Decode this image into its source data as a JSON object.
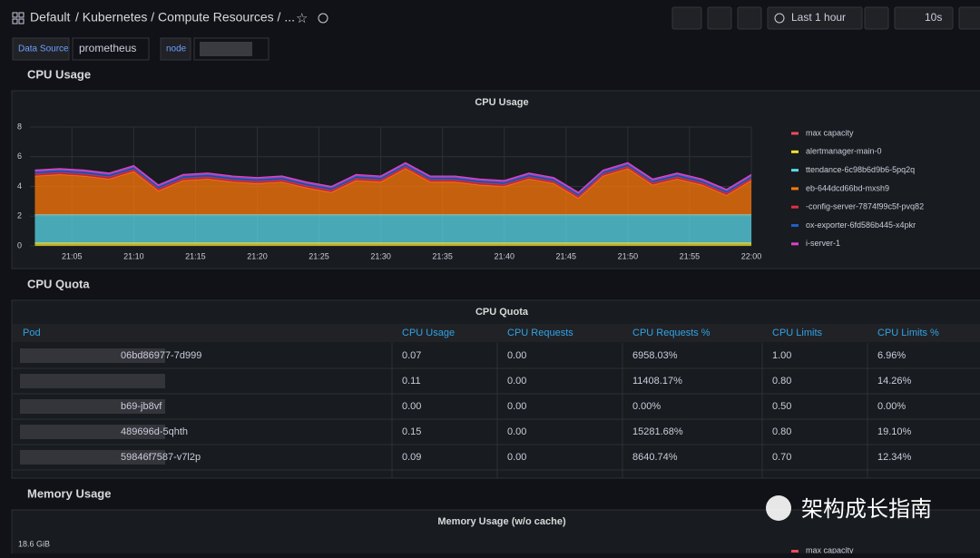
{
  "header": {
    "home": "Default",
    "breadcrumb": "/ Kubernetes / Compute Resources / ...",
    "time_range": "Last 1 hour",
    "refresh": "10s"
  },
  "variables": {
    "datasource_label": "Data Source",
    "datasource_value": "prometheus",
    "node_label": "node"
  },
  "rows": {
    "cpu_usage": "CPU Usage",
    "cpu_quota": "CPU Quota",
    "memory_usage": "Memory Usage"
  },
  "chart_data": {
    "type": "stacked-area",
    "title": "CPU Usage",
    "x": [
      2,
      4,
      6,
      8,
      10,
      12,
      14,
      16,
      18,
      20,
      22,
      24,
      26,
      28,
      30,
      32,
      34,
      36,
      38,
      40,
      42,
      44,
      46,
      48,
      50,
      52,
      54,
      56,
      58,
      60
    ],
    "xlim": [
      1.6,
      60
    ],
    "xticks": [
      {
        "value": 5,
        "label": "21:05"
      },
      {
        "value": 10,
        "label": "21:10"
      },
      {
        "value": 15,
        "label": "21:15"
      },
      {
        "value": 20,
        "label": "21:20"
      },
      {
        "value": 25,
        "label": "21:25"
      },
      {
        "value": 30,
        "label": "21:30"
      },
      {
        "value": 35,
        "label": "21:35"
      },
      {
        "value": 40,
        "label": "21:40"
      },
      {
        "value": 45,
        "label": "21:45"
      },
      {
        "value": 50,
        "label": "21:50"
      },
      {
        "value": 55,
        "label": "21:55"
      },
      {
        "value": 60,
        "label": "22:00"
      }
    ],
    "ylim": [
      0,
      8
    ],
    "yticks": [
      0,
      2,
      4,
      6,
      8
    ],
    "grid": true,
    "series": [
      {
        "name": "max capacity",
        "color": "#f2495c",
        "values": [
          null,
          null,
          null,
          null,
          null,
          null,
          null,
          null,
          null,
          null,
          null,
          null,
          null,
          null,
          null,
          null,
          null,
          null,
          null,
          null,
          null,
          null,
          null,
          null,
          null,
          null,
          null,
          null,
          null,
          null
        ]
      },
      {
        "name": "alertmanager-main-0",
        "color": "#fade2a",
        "values": [
          0.2,
          0.2,
          0.2,
          0.2,
          0.2,
          0.2,
          0.2,
          0.2,
          0.2,
          0.2,
          0.2,
          0.2,
          0.2,
          0.2,
          0.2,
          0.2,
          0.2,
          0.2,
          0.2,
          0.2,
          0.2,
          0.2,
          0.2,
          0.2,
          0.2,
          0.2,
          0.2,
          0.2,
          0.2,
          0.2
        ]
      },
      {
        "name": "ttendance-6c98b6d9b6-5pq2q",
        "color": "#5ad8e8",
        "values": [
          1.9,
          1.9,
          1.9,
          1.9,
          1.9,
          1.9,
          1.9,
          1.9,
          1.9,
          1.9,
          1.9,
          1.9,
          1.9,
          1.9,
          1.9,
          1.9,
          1.9,
          1.9,
          1.9,
          1.9,
          1.9,
          1.9,
          1.9,
          1.9,
          1.9,
          1.9,
          1.9,
          1.9,
          1.9,
          1.9
        ]
      },
      {
        "name": "eb-644dcd66bd-mxsh9",
        "color": "#ff780a",
        "values": [
          2.6,
          2.7,
          2.6,
          2.4,
          2.9,
          1.6,
          2.3,
          2.4,
          2.2,
          2.1,
          2.2,
          1.8,
          1.5,
          2.3,
          2.2,
          3.1,
          2.2,
          2.2,
          2.0,
          1.9,
          2.4,
          2.1,
          1.1,
          2.6,
          3.1,
          2.0,
          2.4,
          2.0,
          1.3,
          2.3
        ]
      },
      {
        "name": "-config-server-7874f99c5f-pvq82",
        "color": "#e02f44",
        "values": [
          0.15,
          0.15,
          0.15,
          0.15,
          0.15,
          0.15,
          0.15,
          0.15,
          0.15,
          0.15,
          0.15,
          0.15,
          0.15,
          0.15,
          0.15,
          0.15,
          0.15,
          0.15,
          0.15,
          0.15,
          0.15,
          0.15,
          0.15,
          0.15,
          0.15,
          0.15,
          0.15,
          0.15,
          0.15,
          0.15
        ]
      },
      {
        "name": "ox-exporter-6fd586b445-x4pkr",
        "color": "#1f60c4",
        "values": [
          0.15,
          0.15,
          0.15,
          0.15,
          0.15,
          0.15,
          0.15,
          0.15,
          0.15,
          0.15,
          0.15,
          0.15,
          0.15,
          0.15,
          0.15,
          0.15,
          0.15,
          0.15,
          0.15,
          0.15,
          0.15,
          0.15,
          0.15,
          0.15,
          0.15,
          0.15,
          0.15,
          0.15,
          0.15,
          0.15
        ]
      },
      {
        "name": "i-server-1",
        "color": "#d944c9",
        "values": [
          0.1,
          0.1,
          0.1,
          0.1,
          0.1,
          0.1,
          0.1,
          0.1,
          0.1,
          0.1,
          0.1,
          0.1,
          0.1,
          0.1,
          0.1,
          0.1,
          0.1,
          0.1,
          0.1,
          0.1,
          0.1,
          0.1,
          0.1,
          0.1,
          0.1,
          0.1,
          0.1,
          0.1,
          0.1,
          0.1
        ]
      }
    ]
  },
  "table": {
    "title": "CPU Quota",
    "columns": [
      "Pod",
      "CPU Usage",
      "CPU Requests",
      "CPU Requests %",
      "CPU Limits",
      "CPU Limits %"
    ],
    "rows": [
      {
        "pod": "06bd86977-7d999",
        "cells": [
          "0.07",
          "0.00",
          "6958.03%",
          "1.00",
          "6.96%"
        ]
      },
      {
        "cells": [
          "0.11",
          "0.00",
          "11408.17%",
          "0.80",
          "14.26%"
        ]
      },
      {
        "pod": "b69-jb8vf",
        "cells": [
          "0.00",
          "0.00",
          "0.00%",
          "0.50",
          "0.00%"
        ]
      },
      {
        "pod": "489696d-5qhth",
        "cells": [
          "0.15",
          "0.00",
          "15281.68%",
          "0.80",
          "19.10%"
        ]
      },
      {
        "pod": "59846f7587-v7l2p",
        "cells": [
          "0.09",
          "0.00",
          "8640.74%",
          "0.70",
          "12.34%"
        ]
      }
    ]
  },
  "memory_panel": {
    "title": "Memory Usage (w/o cache)",
    "ytick_label": "18.6 GiB",
    "legend": "max capacity"
  },
  "watermark": "架构成长指南"
}
